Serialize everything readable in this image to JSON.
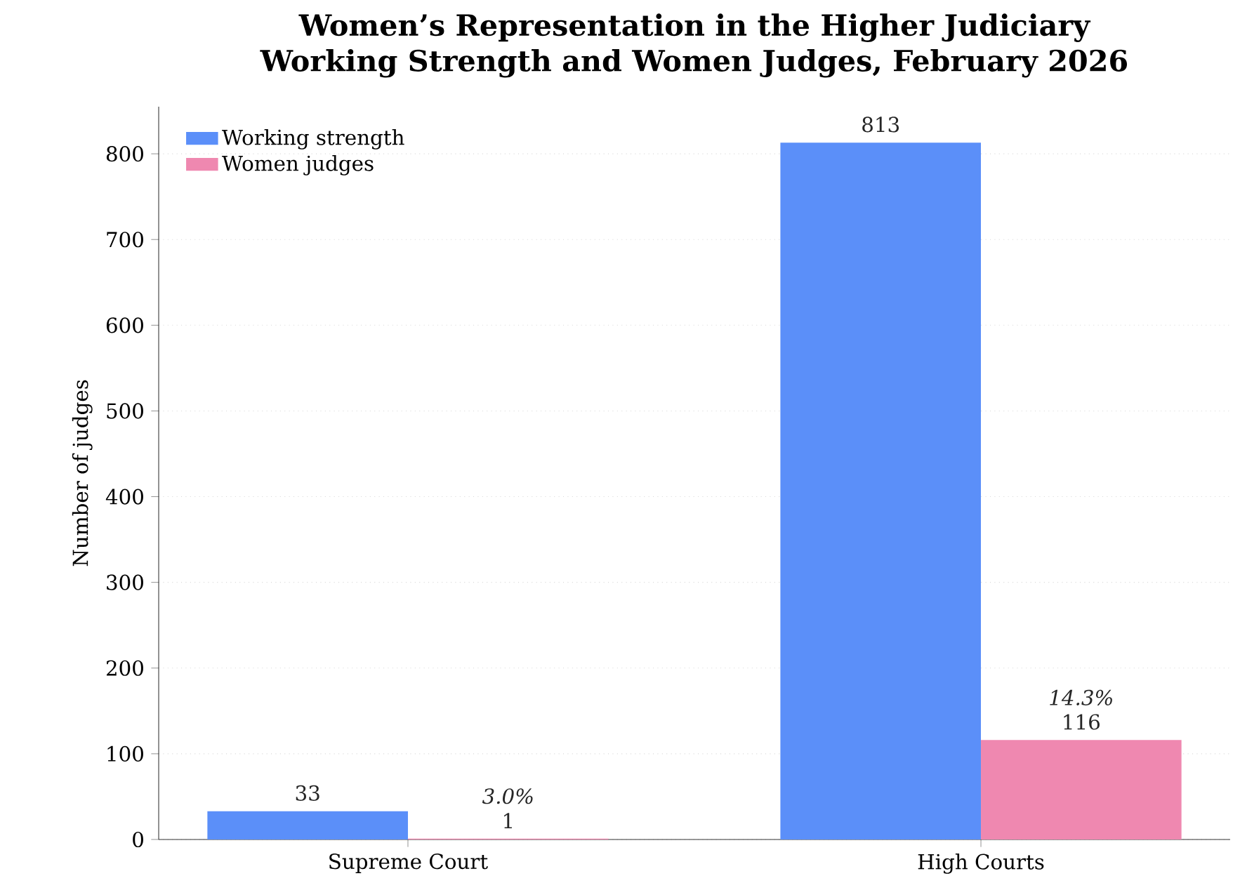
{
  "chart_data": {
    "type": "bar",
    "title": "Women’s Representation in the Higher Judiciary",
    "subtitle": "Working Strength and Women Judges, February 2026",
    "ylabel": "Number of judges",
    "categories": [
      "Supreme Court",
      "High Courts"
    ],
    "series": [
      {
        "name": "Working strength",
        "color": "#5b8ff9",
        "values": [
          33,
          813
        ]
      },
      {
        "name": "Women judges",
        "color": "#ef88b0",
        "values": [
          1,
          116
        ]
      }
    ],
    "annotations": [
      "3.0%",
      "14.3%"
    ],
    "ylim": [
      0,
      855
    ],
    "yticks": [
      0,
      100,
      200,
      300,
      400,
      500,
      600,
      700,
      800
    ],
    "data_labels": true,
    "grid": "y",
    "legend": "top left"
  }
}
